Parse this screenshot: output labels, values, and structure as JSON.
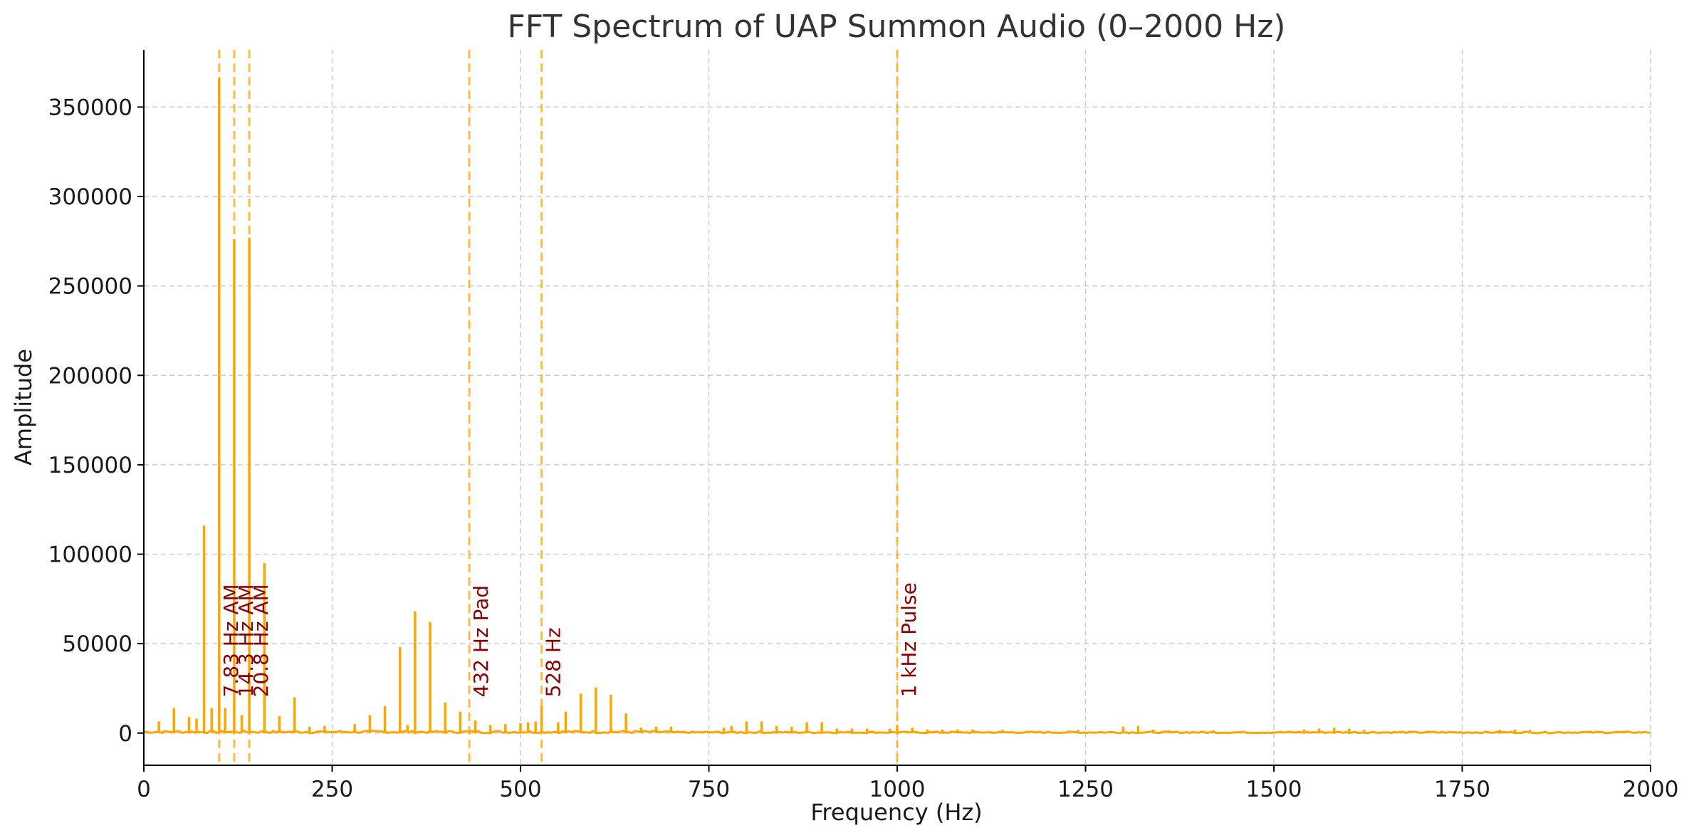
{
  "chart_data": {
    "type": "line",
    "title": "FFT Spectrum of UAP Summon Audio (0–2000 Hz)",
    "xlabel": "Frequency (Hz)",
    "ylabel": "Amplitude",
    "xlim": [
      0,
      2000
    ],
    "ylim": [
      -18000,
      382000
    ],
    "x_ticks": [
      0,
      250,
      500,
      750,
      1000,
      1250,
      1500,
      1750,
      2000
    ],
    "y_ticks": [
      0,
      50000,
      100000,
      150000,
      200000,
      250000,
      300000,
      350000
    ],
    "grid": true,
    "legend": "none",
    "colors": {
      "line": "#ffa500",
      "annotation": "#8b0000",
      "marker": "#ffa500",
      "grid": "#cccccc"
    },
    "baseline_noise": 800,
    "series": [
      {
        "peaks": [
          {
            "x": 20,
            "y": 6500
          },
          {
            "x": 40,
            "y": 14000
          },
          {
            "x": 60,
            "y": 9000
          },
          {
            "x": 70,
            "y": 8000
          },
          {
            "x": 80,
            "y": 116000
          },
          {
            "x": 90,
            "y": 14000
          },
          {
            "x": 100,
            "y": 366000
          },
          {
            "x": 108,
            "y": 14000
          },
          {
            "x": 120,
            "y": 276000
          },
          {
            "x": 130,
            "y": 10000
          },
          {
            "x": 140,
            "y": 277000
          },
          {
            "x": 160,
            "y": 95000
          },
          {
            "x": 180,
            "y": 9500
          },
          {
            "x": 200,
            "y": 20000
          },
          {
            "x": 220,
            "y": 3500
          },
          {
            "x": 240,
            "y": 4000
          },
          {
            "x": 280,
            "y": 5000
          },
          {
            "x": 300,
            "y": 10000
          },
          {
            "x": 320,
            "y": 15000
          },
          {
            "x": 340,
            "y": 48000
          },
          {
            "x": 350,
            "y": 4500
          },
          {
            "x": 360,
            "y": 68000
          },
          {
            "x": 380,
            "y": 62000
          },
          {
            "x": 400,
            "y": 17000
          },
          {
            "x": 420,
            "y": 12000
          },
          {
            "x": 440,
            "y": 7000
          },
          {
            "x": 460,
            "y": 4500
          },
          {
            "x": 480,
            "y": 5000
          },
          {
            "x": 500,
            "y": 5500
          },
          {
            "x": 510,
            "y": 6000
          },
          {
            "x": 520,
            "y": 6500
          },
          {
            "x": 528,
            "y": 15000
          },
          {
            "x": 550,
            "y": 6000
          },
          {
            "x": 560,
            "y": 12000
          },
          {
            "x": 580,
            "y": 22000
          },
          {
            "x": 600,
            "y": 25500
          },
          {
            "x": 620,
            "y": 21500
          },
          {
            "x": 640,
            "y": 11000
          },
          {
            "x": 660,
            "y": 3000
          },
          {
            "x": 680,
            "y": 3500
          },
          {
            "x": 700,
            "y": 3500
          },
          {
            "x": 770,
            "y": 3000
          },
          {
            "x": 780,
            "y": 4000
          },
          {
            "x": 800,
            "y": 6500
          },
          {
            "x": 820,
            "y": 6500
          },
          {
            "x": 840,
            "y": 4000
          },
          {
            "x": 860,
            "y": 3500
          },
          {
            "x": 880,
            "y": 6000
          },
          {
            "x": 900,
            "y": 6000
          },
          {
            "x": 920,
            "y": 2500
          },
          {
            "x": 940,
            "y": 2500
          },
          {
            "x": 960,
            "y": 2500
          },
          {
            "x": 990,
            "y": 2500
          },
          {
            "x": 1000,
            "y": 4500
          },
          {
            "x": 1020,
            "y": 3000
          },
          {
            "x": 1040,
            "y": 2000
          },
          {
            "x": 1060,
            "y": 2000
          },
          {
            "x": 1080,
            "y": 2000
          },
          {
            "x": 1100,
            "y": 2000
          },
          {
            "x": 1140,
            "y": 1800
          },
          {
            "x": 1240,
            "y": 1800
          },
          {
            "x": 1300,
            "y": 3500
          },
          {
            "x": 1320,
            "y": 4000
          },
          {
            "x": 1340,
            "y": 2000
          },
          {
            "x": 1360,
            "y": 1500
          },
          {
            "x": 1420,
            "y": 1500
          },
          {
            "x": 1540,
            "y": 2000
          },
          {
            "x": 1560,
            "y": 2500
          },
          {
            "x": 1580,
            "y": 3000
          },
          {
            "x": 1600,
            "y": 2500
          },
          {
            "x": 1620,
            "y": 1800
          },
          {
            "x": 1800,
            "y": 1800
          },
          {
            "x": 1820,
            "y": 2000
          },
          {
            "x": 1840,
            "y": 1800
          }
        ]
      }
    ],
    "markers": [
      {
        "x": 100,
        "label": "7.83 Hz AM"
      },
      {
        "x": 120,
        "label": "14.3 Hz AM"
      },
      {
        "x": 140,
        "label": "20.8 Hz AM"
      },
      {
        "x": 432,
        "label": "432 Hz Pad"
      },
      {
        "x": 528,
        "label": "528 Hz"
      },
      {
        "x": 1000,
        "label": "1 kHz Pulse"
      }
    ],
    "marker_label_y": 20000
  }
}
